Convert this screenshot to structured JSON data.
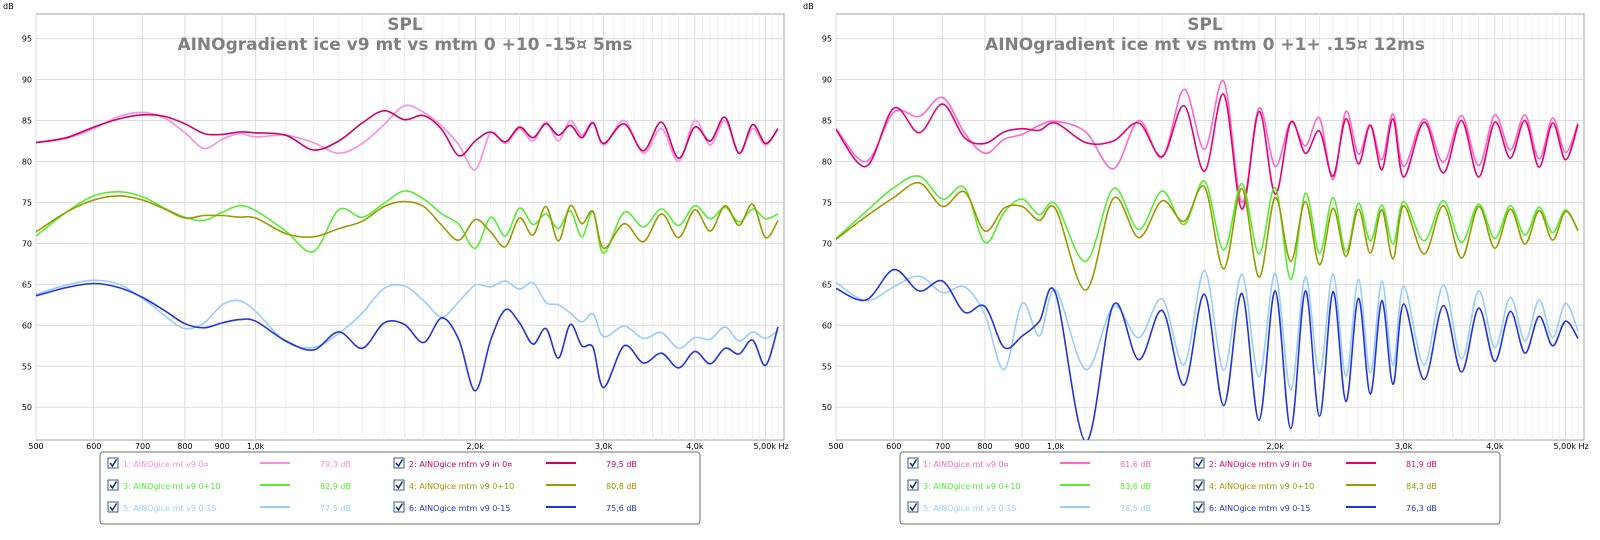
{
  "panels": [
    {
      "unit_label": "dB",
      "title": "SPL",
      "subtitle": "AINOgradient ice v9 mt vs mtm 0 +10 -15¤ 5ms",
      "x_tick_labels": [
        "500",
        "600",
        "700",
        "800",
        "900",
        "1,0k",
        "2,0k",
        "3,0k",
        "4,0k",
        "5,00k Hz"
      ],
      "y_tick_labels": [
        "95",
        "90",
        "85",
        "80",
        "75",
        "70",
        "65",
        "60",
        "55",
        "50"
      ],
      "legend": [
        {
          "label": "1: AINOgice mt v9 0¤",
          "value": "79,3 dB",
          "color": "#ff8ce0",
          "checked": true
        },
        {
          "label": "2: AINOgice mtm v9 in 0¤",
          "value": "79,5 dB",
          "color": "#cc0066",
          "checked": true
        },
        {
          "label": "3: AINOgice mt v9 0+10",
          "value": "82,9 dB",
          "color": "#55ee33",
          "checked": true
        },
        {
          "label": "4: AINOgice mtm v9 0+10",
          "value": "80,8 dB",
          "color": "#999900",
          "checked": true
        },
        {
          "label": "5: AINOgice mt v9 0-15",
          "value": "77,5 dB",
          "color": "#99ccff",
          "checked": true
        },
        {
          "label": "6: AINOgice mtm v9 0-15",
          "value": "75,6 dB",
          "color": "#2233dd",
          "checked": true
        }
      ]
    },
    {
      "unit_label": "dB",
      "title": "SPL",
      "subtitle": "AINOgradient ice mt vs mtm 0 +1+ .15¤ 12ms",
      "x_tick_labels": [
        "500",
        "600",
        "700",
        "800",
        "900",
        "1,0k",
        "2,0k",
        "3,0k",
        "4,0k",
        "5,00k Hz"
      ],
      "y_tick_labels": [
        "95",
        "90",
        "85",
        "80",
        "75",
        "70",
        "65",
        "60",
        "55",
        "50"
      ],
      "legend": [
        {
          "label": "1: AINOgice mt v9 0¤",
          "value": "81,6 dB",
          "color": "#ff66cc",
          "checked": true
        },
        {
          "label": "2: AINOgice mtm v9 in 0¤",
          "value": "81,9 dB",
          "color": "#e60073",
          "checked": true
        },
        {
          "label": "3: AINOgice mt v9 0+10",
          "value": "83,6 dB",
          "color": "#55ee33",
          "checked": true
        },
        {
          "label": "4: AINOgice mtm v9 0+10",
          "value": "84,3 dB",
          "color": "#999900",
          "checked": true
        },
        {
          "label": "5: AINOgice mt v9 0-15",
          "value": "78,5 dB",
          "color": "#99ccff",
          "checked": true
        },
        {
          "label": "6: AINOgice mtm v9 0-15",
          "value": "76,3 dB",
          "color": "#2233dd",
          "checked": true
        }
      ]
    }
  ],
  "chart_data": [
    {
      "type": "line",
      "title": "SPL",
      "subtitle": "AINOgradient ice v9 mt vs mtm 0 +10 -15¤ 5ms",
      "ylabel": "dB",
      "xscale": "log",
      "xlim": [
        500,
        5300
      ],
      "ylim": [
        46,
        98
      ],
      "grid": true,
      "x": [
        500,
        550,
        600,
        650,
        700,
        750,
        800,
        850,
        900,
        950,
        1000,
        1100,
        1200,
        1300,
        1400,
        1500,
        1600,
        1700,
        1800,
        1900,
        2000,
        2100,
        2200,
        2300,
        2400,
        2500,
        2600,
        2700,
        2800,
        2900,
        3000,
        3200,
        3400,
        3600,
        3800,
        4000,
        4200,
        4400,
        4600,
        4800,
        5000,
        5200
      ],
      "series": [
        {
          "name": "1: AINOgice mt v9 0¤",
          "values": [
            82.3,
            82.8,
            84,
            85.5,
            86,
            85.3,
            83.5,
            81.6,
            82.7,
            83.4,
            83,
            83.2,
            82.3,
            81,
            82.2,
            84.5,
            86.8,
            86,
            84.3,
            82,
            79,
            83.5,
            82.2,
            84,
            82.5,
            84.8,
            82.5,
            85,
            83.2,
            84.8,
            82,
            85,
            81,
            84,
            80,
            85,
            82,
            85,
            81,
            84,
            82,
            84
          ]
        },
        {
          "name": "2: AINOgice mtm v9 in 0¤",
          "values": [
            82.3,
            82.9,
            84.2,
            85.2,
            85.7,
            85.5,
            84.6,
            83.4,
            83.3,
            83.6,
            83.5,
            83.2,
            81.4,
            82.5,
            84.7,
            86.2,
            85.1,
            85.6,
            83.9,
            80.7,
            82.5,
            83.6,
            82.4,
            84.2,
            82.9,
            84.6,
            83.2,
            84.4,
            82.9,
            84.7,
            82.2,
            84.6,
            81.3,
            84.8,
            80.4,
            84.2,
            82.5,
            85.4,
            81,
            84.5,
            82.2,
            84
          ]
        },
        {
          "name": "3: AINOgice mt v9 0+10",
          "values": [
            70.9,
            73.8,
            75.8,
            76.3,
            75.7,
            74.3,
            73.2,
            72.8,
            73.8,
            74.6,
            74,
            71.5,
            69,
            74.1,
            73.2,
            74.9,
            76.4,
            75.4,
            73.6,
            72.3,
            69.4,
            73.2,
            70.9,
            74.3,
            72.3,
            73.6,
            71.8,
            74,
            70.8,
            73.8,
            68.8,
            73.8,
            72,
            74.2,
            72.2,
            74.6,
            73,
            74.4,
            72.6,
            74.2,
            73,
            73.6
          ]
        },
        {
          "name": "4: AINOgice mtm v9 0+10",
          "values": [
            71.4,
            73.8,
            75.3,
            75.8,
            75.3,
            74.2,
            73.1,
            73.4,
            73.4,
            73.2,
            73.1,
            71.2,
            70.8,
            71.8,
            72.7,
            74.5,
            75.1,
            74.5,
            72.2,
            70.4,
            72.9,
            71.4,
            69.6,
            73.1,
            71,
            74.5,
            70.3,
            74.6,
            72.4,
            73.9,
            69.4,
            72.4,
            70.2,
            73.6,
            70.7,
            74.1,
            71.5,
            74.6,
            72.2,
            74.8,
            70.7,
            72.8
          ]
        },
        {
          "name": "5: AINOgice mt v9 0-15",
          "values": [
            63.8,
            64.9,
            65.5,
            65,
            63.3,
            61.2,
            59.6,
            60.3,
            62.5,
            63,
            61.7,
            58,
            57.3,
            59,
            61.5,
            64.5,
            64.8,
            63,
            61,
            62.9,
            64.9,
            64.7,
            65.4,
            64.4,
            65.2,
            62.8,
            62.5,
            61.5,
            60.4,
            61.4,
            58.6,
            59.9,
            58.4,
            59.1,
            57.2,
            58.5,
            58.3,
            59.8,
            58.1,
            59.2,
            58.4,
            59.4
          ]
        },
        {
          "name": "6: AINOgice mtm v9 0-15",
          "values": [
            63.6,
            64.6,
            65.1,
            64.6,
            63.4,
            61.8,
            60.2,
            59.7,
            60.3,
            60.7,
            60.5,
            58.1,
            57,
            59.2,
            57.2,
            60.3,
            60.1,
            57.9,
            60.9,
            58.2,
            52,
            58.2,
            61.9,
            60.3,
            57.7,
            59.6,
            56,
            60.1,
            57.5,
            57.3,
            52.4,
            57.5,
            55.4,
            56.6,
            54.8,
            56.8,
            55.3,
            57.2,
            56.5,
            58.2,
            55.1,
            59.8
          ]
        }
      ]
    },
    {
      "type": "line",
      "title": "SPL",
      "subtitle": "AINOgradient ice mt vs mtm 0 +1+ .15¤ 12ms",
      "ylabel": "dB",
      "xscale": "log",
      "xlim": [
        500,
        5300
      ],
      "ylim": [
        46,
        98
      ],
      "grid": true,
      "x": [
        500,
        550,
        600,
        650,
        700,
        750,
        800,
        850,
        900,
        950,
        1000,
        1100,
        1200,
        1300,
        1400,
        1500,
        1600,
        1700,
        1800,
        1900,
        2000,
        2100,
        2200,
        2300,
        2400,
        2500,
        2600,
        2700,
        2800,
        2900,
        3000,
        3200,
        3400,
        3600,
        3800,
        4000,
        4200,
        4400,
        4600,
        4800,
        5000,
        5200
      ],
      "series": [
        {
          "name": "1: AINOgice mt v9 0¤",
          "values": [
            84,
            80,
            86,
            85.5,
            87.8,
            83.5,
            81,
            82.7,
            83.3,
            84.4,
            84.9,
            83.6,
            79.1,
            85,
            80.5,
            88.8,
            81.5,
            89.8,
            75,
            86.5,
            79.4,
            84.8,
            81.9,
            85.3,
            77.8,
            86.1,
            80.9,
            84.5,
            80.2,
            85.8,
            79.4,
            85.2,
            79.9,
            85.6,
            79.5,
            85.7,
            81.4,
            85.7,
            80.3,
            85.3,
            81.1,
            84.7
          ]
        },
        {
          "name": "2: AINOgice mtm v9 in 0¤",
          "values": [
            83.9,
            79.4,
            86.5,
            83.5,
            87,
            82.9,
            82.2,
            83.6,
            84,
            83.8,
            84.7,
            82.3,
            82.5,
            84.7,
            80.6,
            86.8,
            78.8,
            88.2,
            74.2,
            86.1,
            76,
            84.8,
            81,
            83.7,
            78.2,
            85.2,
            79.7,
            84.4,
            79,
            85.2,
            78.1,
            84.8,
            78.6,
            85,
            78.1,
            84.8,
            80.4,
            85,
            79.3,
            84.7,
            80.2,
            84.5
          ]
        },
        {
          "name": "3: AINOgice mt v9 0+10",
          "values": [
            70.6,
            73.9,
            76.8,
            78.2,
            75.4,
            76.8,
            70.1,
            73.8,
            75.4,
            73.5,
            74.8,
            67.8,
            76.7,
            71.7,
            76.4,
            72.3,
            77.6,
            69.2,
            77.3,
            68.7,
            76.8,
            65.6,
            76.1,
            68.8,
            75.6,
            69,
            74.9,
            70.3,
            74.7,
            69.9,
            75.1,
            70.3,
            75.2,
            70.1,
            74.8,
            70.6,
            74.6,
            71,
            74.4,
            71.3,
            74.1,
            71.5
          ]
        },
        {
          "name": "4: AINOgice mtm v9 0+10",
          "values": [
            70.5,
            73.3,
            75.6,
            77.4,
            74.5,
            76.3,
            71.5,
            74.3,
            74.5,
            72.8,
            74.2,
            64.3,
            75.5,
            70.7,
            75.2,
            72.7,
            76.9,
            66.9,
            76.7,
            65.9,
            75.6,
            67.8,
            75.1,
            67.4,
            74.3,
            68.4,
            74.2,
            68.8,
            74.1,
            68.1,
            74.6,
            68.7,
            74.6,
            68.2,
            74.5,
            69.4,
            74.2,
            69.9,
            74,
            70.4,
            73.9,
            71.6
          ]
        },
        {
          "name": "5: AINOgice mt v9 0-15",
          "values": [
            65.2,
            63,
            64.7,
            66,
            64,
            64.7,
            61.3,
            54.6,
            62.7,
            58.7,
            64.3,
            54.6,
            62.3,
            58.5,
            63.2,
            55.2,
            66.7,
            54.5,
            66.2,
            53.7,
            66.3,
            52.1,
            65.9,
            54.1,
            66.3,
            53.8,
            65.6,
            54.2,
            65.4,
            55.1,
            64.8,
            55.2,
            64.9,
            55.9,
            64.2,
            57.3,
            63.4,
            58.1,
            63.1,
            58.5,
            62.7,
            59.3
          ]
        },
        {
          "name": "6: AINOgice mtm v9 0-15",
          "values": [
            64.5,
            63.1,
            66.8,
            64.2,
            65.4,
            61.6,
            62.3,
            57.3,
            58.7,
            60.5,
            63.9,
            45.8,
            62.5,
            55.8,
            61.8,
            52.7,
            63.8,
            50.2,
            63.9,
            48.4,
            64.2,
            47.4,
            64.2,
            48.9,
            64.1,
            50.7,
            63.3,
            51.6,
            63,
            52.8,
            62.6,
            53.4,
            62.4,
            54.3,
            62.1,
            55.6,
            61.7,
            56.6,
            61.1,
            57.5,
            60.5,
            58.4
          ]
        }
      ]
    }
  ]
}
